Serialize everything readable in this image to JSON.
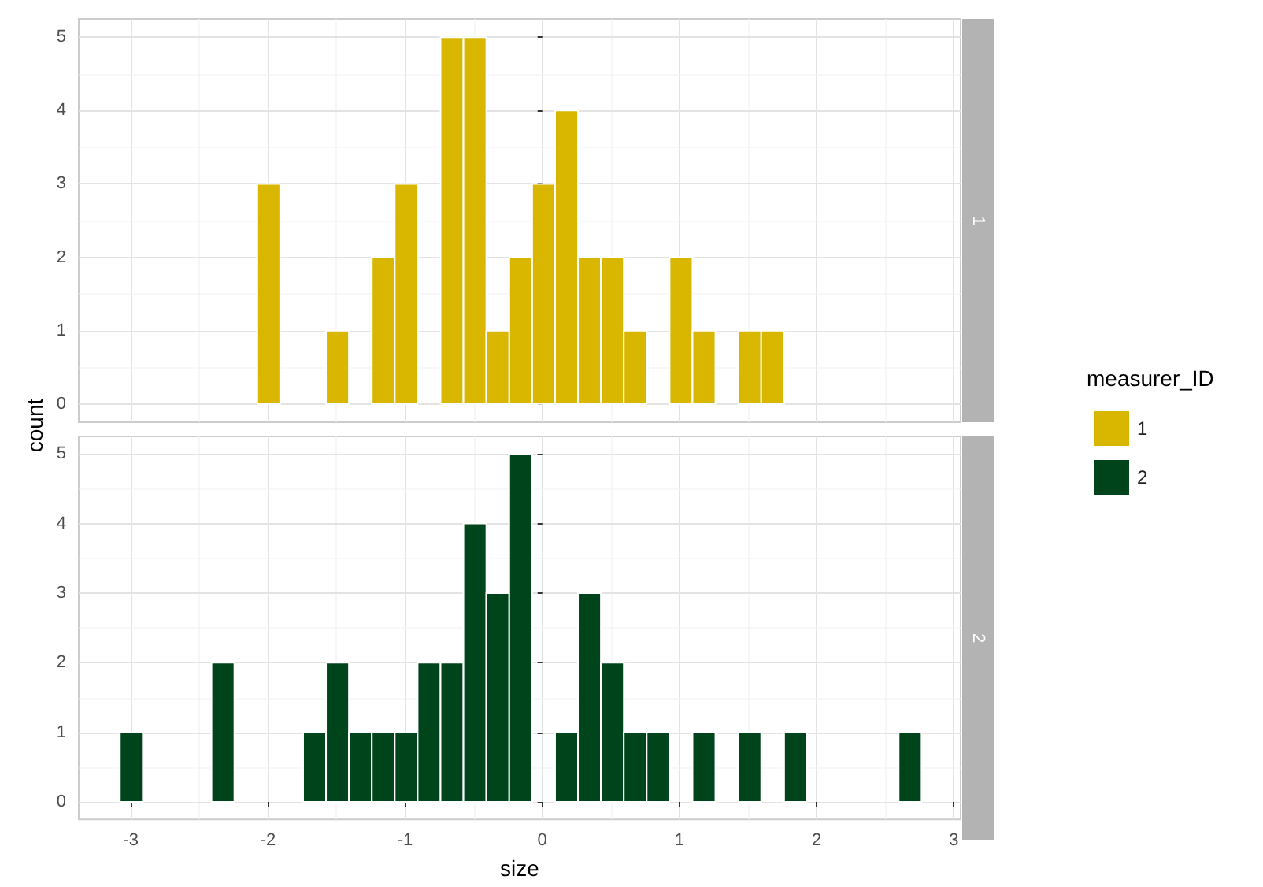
{
  "chart_data": [
    {
      "type": "histogram",
      "title": "1",
      "ylabel": "count",
      "legend_title": "measurer_ID",
      "legend": "right",
      "grid": true,
      "tick_labels": "y",
      "bins": [
        -3.08,
        -2.913,
        -2.746,
        -2.579,
        -2.412,
        -2.245,
        -2.078,
        -1.911,
        -1.744,
        -1.577,
        -1.41,
        -1.243,
        -1.076,
        -0.909,
        -0.742,
        -0.575,
        -0.408,
        -0.241,
        -0.074,
        0.093,
        0.26,
        0.427,
        0.594,
        0.761,
        0.928,
        1.095,
        1.262,
        1.429,
        1.596,
        1.763,
        1.93,
        2.097,
        2.264,
        2.431,
        2.598,
        2.765
      ],
      "series": [
        {
          "name": "1",
          "color": "#d9b600",
          "values": [
            0,
            0,
            0,
            0,
            0,
            0,
            3,
            0,
            0,
            1,
            0,
            2,
            3,
            0,
            5,
            5,
            1,
            2,
            3,
            4,
            2,
            2,
            1,
            0,
            2,
            1,
            0,
            1,
            1,
            0,
            0,
            0,
            0,
            0,
            0
          ]
        }
      ],
      "xlim": [
        -3.38,
        3.05
      ],
      "xticks": [
        -3,
        -2,
        -1,
        0,
        1,
        2,
        3
      ],
      "ylim": [
        -0.25,
        5.25
      ],
      "yticks": [
        0,
        1,
        2,
        3,
        4,
        5
      ]
    },
    {
      "type": "histogram",
      "title": "2",
      "xlabel": "size",
      "legend": "right",
      "grid": true,
      "bins": [
        -3.08,
        -2.913,
        -2.746,
        -2.579,
        -2.412,
        -2.245,
        -2.078,
        -1.911,
        -1.744,
        -1.577,
        -1.41,
        -1.243,
        -1.076,
        -0.909,
        -0.742,
        -0.575,
        -0.408,
        -0.241,
        -0.074,
        0.093,
        0.26,
        0.427,
        0.594,
        0.761,
        0.928,
        1.095,
        1.262,
        1.429,
        1.596,
        1.763,
        1.93,
        2.097,
        2.264,
        2.431,
        2.598,
        2.765
      ],
      "series": [
        {
          "name": "2",
          "color": "#00441b",
          "values": [
            1,
            0,
            0,
            0,
            2,
            0,
            0,
            0,
            1,
            2,
            1,
            1,
            1,
            2,
            2,
            4,
            3,
            5,
            0,
            1,
            3,
            2,
            1,
            1,
            0,
            1,
            0,
            1,
            0,
            1,
            0,
            0,
            0,
            0,
            1
          ]
        }
      ],
      "xlim": [
        -3.38,
        3.05
      ],
      "xticks": [
        -3,
        -2,
        -1,
        0,
        1,
        2,
        3
      ],
      "ylim": [
        -0.25,
        5.25
      ],
      "yticks": [
        0,
        1,
        2,
        3,
        4,
        5
      ]
    }
  ]
}
